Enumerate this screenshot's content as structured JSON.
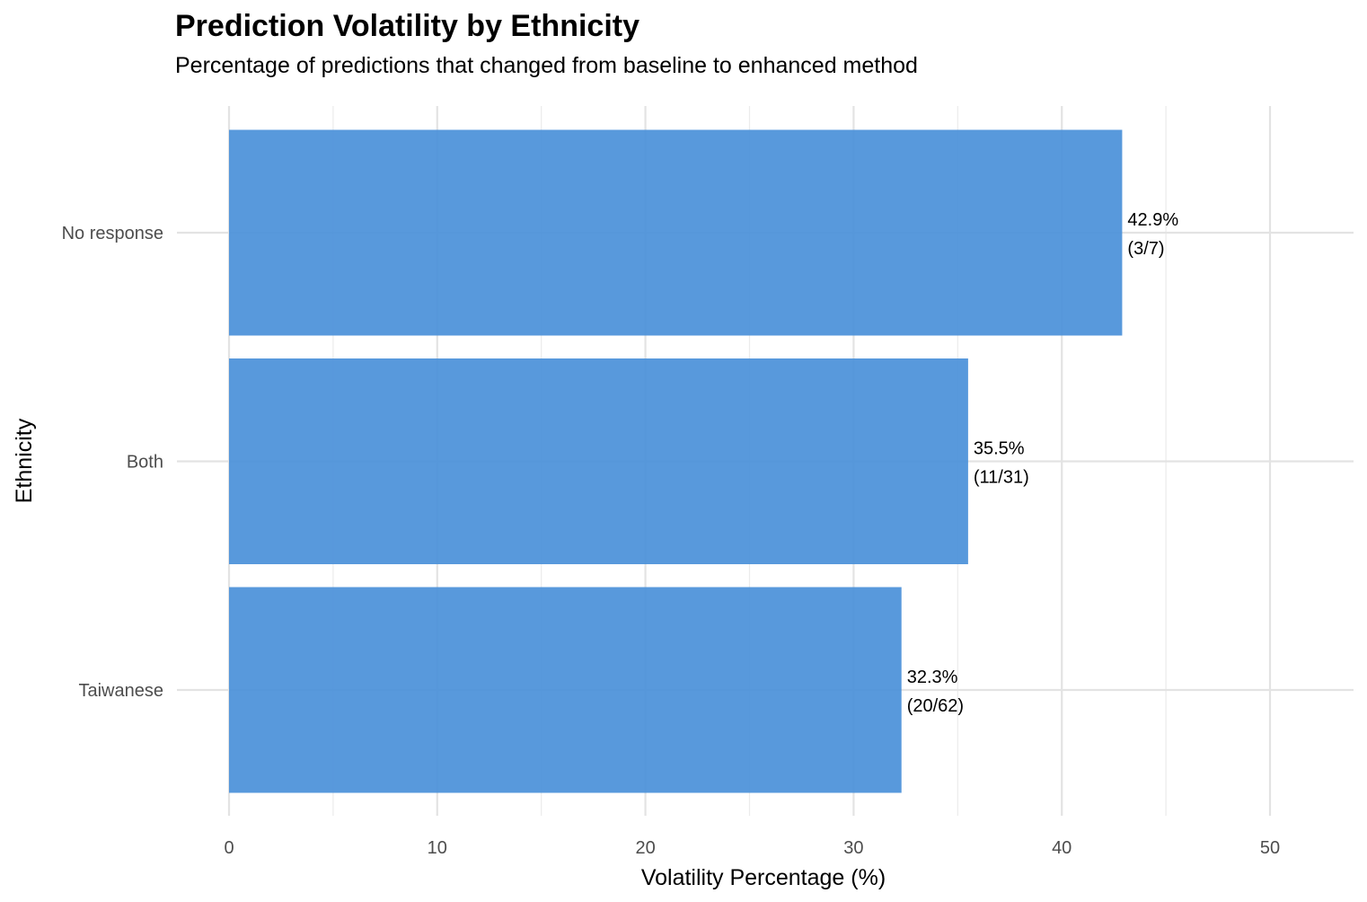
{
  "chart_data": {
    "type": "bar",
    "orientation": "horizontal",
    "title": "Prediction Volatility by Ethnicity",
    "subtitle": "Percentage of predictions that changed from baseline to enhanced method",
    "xlabel": "Volatility Percentage (%)",
    "ylabel": "Ethnicity",
    "categories": [
      "No response",
      "Both",
      "Taiwanese"
    ],
    "values": [
      42.9,
      35.5,
      32.3
    ],
    "labels": [
      [
        "42.9%",
        "(3/7)"
      ],
      [
        "35.5%",
        "(11/31)"
      ],
      [
        "32.3%",
        "(20/62)"
      ]
    ],
    "xlim": [
      0,
      54
    ],
    "xticks": [
      0,
      10,
      20,
      30,
      40,
      50
    ],
    "grid": true,
    "bar_color": "#4a90d9"
  }
}
